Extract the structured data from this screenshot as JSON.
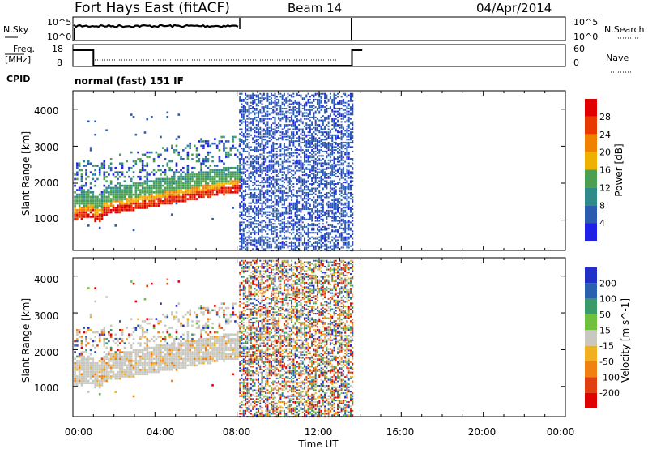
{
  "header": {
    "title": "Fort Hays East (fitACF)",
    "beam": "Beam 14",
    "date": "04/Apr/2014"
  },
  "noise_panel": {
    "left_label": "N.Sky",
    "right_label": "N.Search",
    "left_ticks": [
      "10^5",
      "10^0"
    ],
    "right_ticks": [
      "10^5",
      "10^0"
    ]
  },
  "freq_panel": {
    "left_label_line1": "Freq.",
    "left_label_line2": "[MHz]",
    "right_label": "Nave",
    "left_ticks": [
      "18",
      "8"
    ],
    "right_ticks": [
      "60",
      "0"
    ]
  },
  "cpid": {
    "label": "CPID",
    "value": "normal (fast) 151 IF"
  },
  "x_axis": {
    "label": "Time UT",
    "ticks": [
      "00:00",
      "04:00",
      "08:00",
      "12:00",
      "16:00",
      "20:00",
      "00:00"
    ]
  },
  "power_panel": {
    "ylabel": "Slant Range [km]",
    "yticks": [
      "1000",
      "2000",
      "3000",
      "4000"
    ],
    "colorbar_label": "Power [dB]",
    "colorbar_ticks": [
      "4",
      "8",
      "12",
      "16",
      "20",
      "24",
      "28"
    ],
    "colors": [
      "#1f22e6",
      "#2b5cb0",
      "#2f8a8a",
      "#4aa050",
      "#f0b000",
      "#f08000",
      "#e83a00",
      "#e00000"
    ]
  },
  "velocity_panel": {
    "ylabel": "Slant Range [km]",
    "yticks": [
      "1000",
      "2000",
      "3000",
      "4000"
    ],
    "colorbar_label": "Velocity [m s^-1]",
    "colorbar_ticks": [
      "200",
      "100",
      "50",
      "15",
      "-15",
      "-50",
      "-100",
      "-200"
    ],
    "colors": [
      "#2230c8",
      "#2a60b0",
      "#3a9a6a",
      "#70c040",
      "#c8c8c0",
      "#f0b020",
      "#f08010",
      "#e04010",
      "#e00000"
    ]
  },
  "chart_data": {
    "type": "heatmap",
    "x_range_hours": [
      0,
      24
    ],
    "y_range_km": [
      180,
      4500
    ],
    "summary_series": [
      {
        "name": "freq",
        "segments": [
          [
            0,
            1,
            18
          ],
          [
            1,
            13.6,
            8
          ],
          [
            13.6,
            14.1,
            18
          ]
        ]
      }
    ],
    "features": [
      {
        "name": "power-band",
        "t_start": 0,
        "t_end": 8.1,
        "range_start_km": 1100,
        "range_end_km": 1900,
        "power_db": [
          20,
          28
        ]
      },
      {
        "name": "power-noise",
        "t_start": 8.1,
        "t_end": 13.6,
        "range_start_km": 180,
        "range_end_km": 4500,
        "power_db": [
          0,
          6
        ]
      }
    ]
  }
}
